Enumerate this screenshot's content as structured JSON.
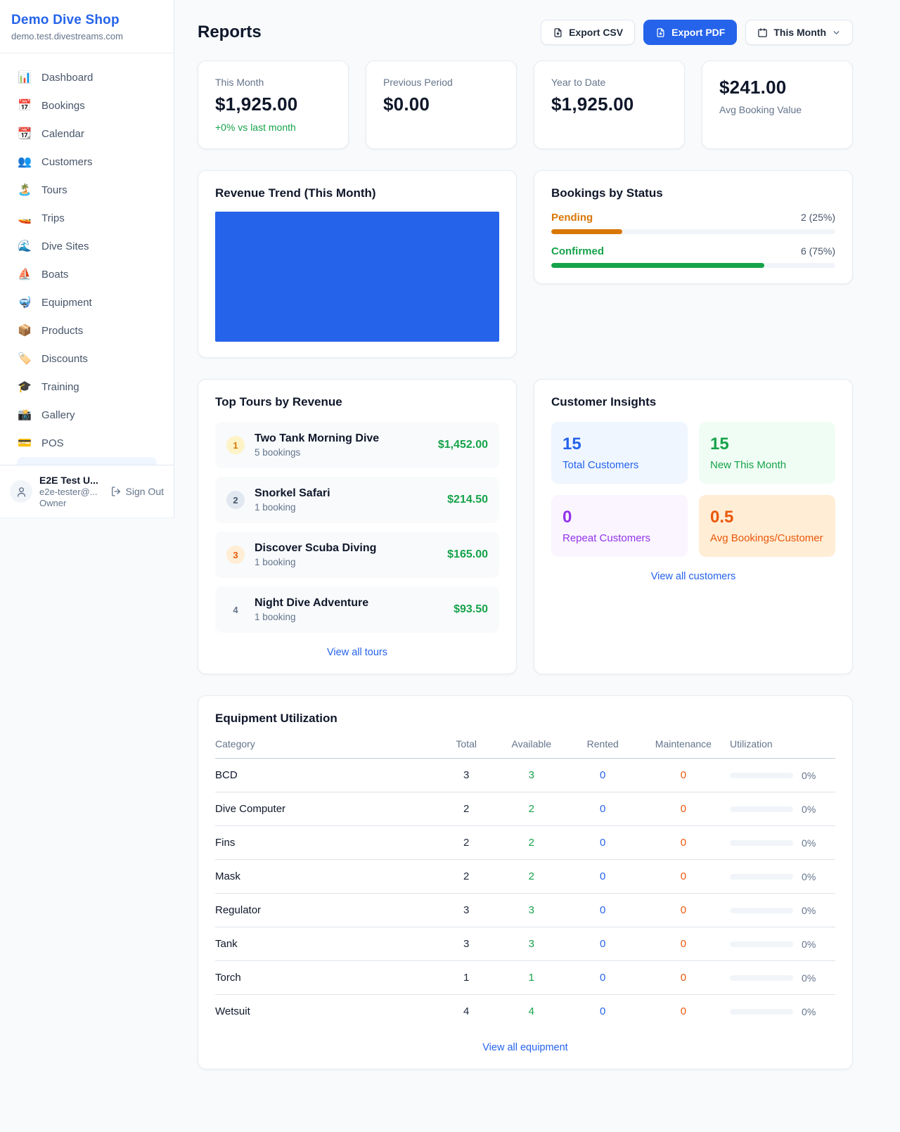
{
  "colors": {
    "accent_blue": "#2563eb",
    "green": "#16a34a",
    "amber": "#d97706",
    "orange": "#ea580c",
    "purple": "#9333ea"
  },
  "sidebar": {
    "shop_name": "Demo Dive Shop",
    "shop_domain": "demo.test.divestreams.com",
    "items": [
      {
        "icon": "📊",
        "label": "Dashboard"
      },
      {
        "icon": "📅",
        "label": "Bookings"
      },
      {
        "icon": "📆",
        "label": "Calendar"
      },
      {
        "icon": "👥",
        "label": "Customers"
      },
      {
        "icon": "🏝️",
        "label": "Tours"
      },
      {
        "icon": "🚤",
        "label": "Trips"
      },
      {
        "icon": "🌊",
        "label": "Dive Sites"
      },
      {
        "icon": "⛵",
        "label": "Boats"
      },
      {
        "icon": "🤿",
        "label": "Equipment"
      },
      {
        "icon": "📦",
        "label": "Products"
      },
      {
        "icon": "🏷️",
        "label": "Discounts"
      },
      {
        "icon": "🎓",
        "label": "Training"
      },
      {
        "icon": "📸",
        "label": "Gallery"
      },
      {
        "icon": "💳",
        "label": "POS"
      }
    ],
    "user": {
      "name": "E2E Test U...",
      "email": "e2e-tester@...",
      "role": "Owner",
      "sign_out_label": "Sign Out"
    }
  },
  "header": {
    "title": "Reports",
    "export_csv": "Export CSV",
    "export_pdf": "Export PDF",
    "period": "This Month"
  },
  "stats": {
    "this_month": {
      "label": "This Month",
      "value": "$1,925.00",
      "change": "+0% vs last month"
    },
    "previous_period": {
      "label": "Previous Period",
      "value": "$0.00"
    },
    "year_to_date": {
      "label": "Year to Date",
      "value": "$1,925.00"
    },
    "avg_booking": {
      "label": "Avg Booking Value",
      "value": "$241.00"
    }
  },
  "chart_data": {
    "type": "bar",
    "title": "Revenue Trend (This Month)",
    "categories": [
      "This Month"
    ],
    "values": [
      1925
    ],
    "ylim": [
      0,
      1925
    ],
    "bar_color": "#2563eb",
    "bar_pct": 100,
    "xlabel": "",
    "ylabel": "",
    "grid": false,
    "legend": false
  },
  "bookings_by_status": {
    "title": "Bookings by Status",
    "rows": [
      {
        "label": "Pending",
        "value": "2 (25%)",
        "pct": 25
      },
      {
        "label": "Confirmed",
        "value": "6 (75%)",
        "pct": 75
      }
    ]
  },
  "top_tours": {
    "title": "Top Tours by Revenue",
    "view_all": "View all tours",
    "rows": [
      {
        "rank": "1",
        "name": "Two Tank Morning Dive",
        "bookings": "5 bookings",
        "amount": "$1,452.00"
      },
      {
        "rank": "2",
        "name": "Snorkel Safari",
        "bookings": "1 booking",
        "amount": "$214.50"
      },
      {
        "rank": "3",
        "name": "Discover Scuba Diving",
        "bookings": "1 booking",
        "amount": "$165.00"
      },
      {
        "rank": "4",
        "name": "Night Dive Adventure",
        "bookings": "1 booking",
        "amount": "$93.50"
      }
    ]
  },
  "customer_insights": {
    "title": "Customer Insights",
    "view_all": "View all customers",
    "tiles": [
      {
        "value": "15",
        "label": "Total Customers",
        "theme": "blue"
      },
      {
        "value": "15",
        "label": "New This Month",
        "theme": "green"
      },
      {
        "value": "0",
        "label": "Repeat Customers",
        "theme": "purple"
      },
      {
        "value": "0.5",
        "label": "Avg Bookings/Customer",
        "theme": "orange"
      }
    ]
  },
  "equipment": {
    "title": "Equipment Utilization",
    "view_all": "View all equipment",
    "columns": [
      "Category",
      "Total",
      "Available",
      "Rented",
      "Maintenance",
      "Utilization"
    ],
    "rows": [
      {
        "category": "BCD",
        "total": "3",
        "available": "3",
        "rented": "0",
        "maintenance": "0",
        "utilization": "0%"
      },
      {
        "category": "Dive Computer",
        "total": "2",
        "available": "2",
        "rented": "0",
        "maintenance": "0",
        "utilization": "0%"
      },
      {
        "category": "Fins",
        "total": "2",
        "available": "2",
        "rented": "0",
        "maintenance": "0",
        "utilization": "0%"
      },
      {
        "category": "Mask",
        "total": "2",
        "available": "2",
        "rented": "0",
        "maintenance": "0",
        "utilization": "0%"
      },
      {
        "category": "Regulator",
        "total": "3",
        "available": "3",
        "rented": "0",
        "maintenance": "0",
        "utilization": "0%"
      },
      {
        "category": "Tank",
        "total": "3",
        "available": "3",
        "rented": "0",
        "maintenance": "0",
        "utilization": "0%"
      },
      {
        "category": "Torch",
        "total": "1",
        "available": "1",
        "rented": "0",
        "maintenance": "0",
        "utilization": "0%"
      },
      {
        "category": "Wetsuit",
        "total": "4",
        "available": "4",
        "rented": "0",
        "maintenance": "0",
        "utilization": "0%"
      }
    ]
  }
}
